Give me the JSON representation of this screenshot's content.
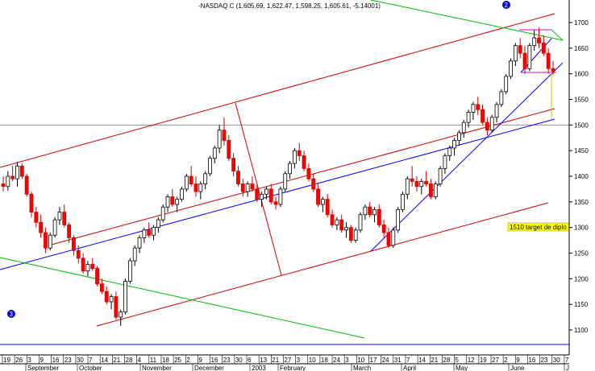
{
  "chart_data": {
    "type": "candlestick",
    "title": "-NASDAQ C (1,605.69, 1,622.47, 1,598.25, 1,605.61, -5.14001)",
    "y_ticks": [
      1100,
      1150,
      1200,
      1250,
      1300,
      1350,
      1400,
      1450,
      1500,
      1550,
      1600,
      1650,
      1700
    ],
    "ylim": [
      1070,
      1730
    ],
    "x_day_ticks": [
      "19",
      "26",
      "3",
      "9",
      "16",
      "23",
      "30",
      "7",
      "14",
      "21",
      "28",
      "4",
      "11",
      "18",
      "25",
      "2",
      "9",
      "16",
      "23",
      "30",
      "6",
      "13",
      "21",
      "27",
      "3",
      "10",
      "18",
      "24",
      "3",
      "10",
      "17",
      "24",
      "31",
      "7",
      "14",
      "21",
      "28",
      "5",
      "12",
      "19",
      "27",
      "2",
      "9",
      "16",
      "23",
      "30",
      "7"
    ],
    "x_month_labels": [
      "September",
      "October",
      "November",
      "December",
      "2003",
      "February",
      "March",
      "April",
      "May",
      "June",
      "J"
    ],
    "annotation_box": "1510 target de diplo",
    "wave_labels": [
      "2",
      "3"
    ],
    "start_date": "2002-08-19",
    "series": [
      {
        "name": "NASDAQ C",
        "ohlc": [
          [
            1385,
            1400,
            1370,
            1380
          ],
          [
            1380,
            1410,
            1372,
            1400
          ],
          [
            1400,
            1420,
            1390,
            1395
          ],
          [
            1395,
            1428,
            1380,
            1420
          ],
          [
            1420,
            1425,
            1395,
            1400
          ],
          [
            1400,
            1405,
            1360,
            1365
          ],
          [
            1365,
            1370,
            1320,
            1330
          ],
          [
            1330,
            1340,
            1300,
            1310
          ],
          [
            1310,
            1325,
            1280,
            1290
          ],
          [
            1290,
            1300,
            1250,
            1260
          ],
          [
            1260,
            1290,
            1255,
            1285
          ],
          [
            1285,
            1320,
            1280,
            1315
          ],
          [
            1315,
            1340,
            1305,
            1330
          ],
          [
            1330,
            1345,
            1300,
            1305
          ],
          [
            1305,
            1310,
            1270,
            1280
          ],
          [
            1280,
            1285,
            1245,
            1255
          ],
          [
            1255,
            1265,
            1230,
            1240
          ],
          [
            1240,
            1250,
            1210,
            1215
          ],
          [
            1215,
            1235,
            1205,
            1228
          ],
          [
            1228,
            1240,
            1215,
            1220
          ],
          [
            1220,
            1225,
            1185,
            1190
          ],
          [
            1190,
            1200,
            1170,
            1175
          ],
          [
            1175,
            1185,
            1150,
            1155
          ],
          [
            1155,
            1170,
            1140,
            1165
          ],
          [
            1165,
            1175,
            1120,
            1125
          ],
          [
            1125,
            1140,
            1108,
            1135
          ],
          [
            1135,
            1200,
            1130,
            1195
          ],
          [
            1195,
            1240,
            1190,
            1235
          ],
          [
            1235,
            1265,
            1225,
            1260
          ],
          [
            1260,
            1285,
            1250,
            1280
          ],
          [
            1280,
            1300,
            1270,
            1295
          ],
          [
            1295,
            1310,
            1280,
            1285
          ],
          [
            1285,
            1305,
            1275,
            1300
          ],
          [
            1300,
            1320,
            1290,
            1315
          ],
          [
            1315,
            1345,
            1310,
            1340
          ],
          [
            1340,
            1365,
            1330,
            1360
          ],
          [
            1360,
            1375,
            1340,
            1345
          ],
          [
            1345,
            1360,
            1330,
            1355
          ],
          [
            1355,
            1380,
            1350,
            1375
          ],
          [
            1375,
            1405,
            1370,
            1400
          ],
          [
            1400,
            1420,
            1380,
            1385
          ],
          [
            1385,
            1400,
            1360,
            1370
          ],
          [
            1370,
            1390,
            1355,
            1385
          ],
          [
            1385,
            1410,
            1375,
            1405
          ],
          [
            1405,
            1440,
            1400,
            1435
          ],
          [
            1435,
            1460,
            1425,
            1455
          ],
          [
            1455,
            1500,
            1445,
            1490
          ],
          [
            1490,
            1515,
            1460,
            1470
          ],
          [
            1470,
            1480,
            1430,
            1435
          ],
          [
            1435,
            1445,
            1400,
            1410
          ],
          [
            1410,
            1420,
            1380,
            1385
          ],
          [
            1385,
            1395,
            1360,
            1370
          ],
          [
            1370,
            1390,
            1360,
            1385
          ],
          [
            1385,
            1400,
            1370,
            1375
          ],
          [
            1375,
            1385,
            1350,
            1355
          ],
          [
            1355,
            1370,
            1340,
            1365
          ],
          [
            1365,
            1380,
            1355,
            1375
          ],
          [
            1375,
            1385,
            1345,
            1350
          ],
          [
            1350,
            1360,
            1335,
            1345
          ],
          [
            1345,
            1380,
            1340,
            1375
          ],
          [
            1375,
            1410,
            1370,
            1405
          ],
          [
            1405,
            1430,
            1395,
            1425
          ],
          [
            1425,
            1455,
            1415,
            1450
          ],
          [
            1450,
            1465,
            1430,
            1440
          ],
          [
            1440,
            1450,
            1410,
            1415
          ],
          [
            1415,
            1425,
            1390,
            1395
          ],
          [
            1395,
            1405,
            1370,
            1375
          ],
          [
            1375,
            1385,
            1340,
            1345
          ],
          [
            1345,
            1360,
            1330,
            1355
          ],
          [
            1355,
            1365,
            1320,
            1325
          ],
          [
            1325,
            1335,
            1300,
            1305
          ],
          [
            1305,
            1320,
            1295,
            1315
          ],
          [
            1315,
            1325,
            1290,
            1295
          ],
          [
            1295,
            1310,
            1280,
            1300
          ],
          [
            1300,
            1305,
            1270,
            1275
          ],
          [
            1275,
            1300,
            1270,
            1295
          ],
          [
            1295,
            1330,
            1290,
            1325
          ],
          [
            1325,
            1345,
            1315,
            1340
          ],
          [
            1340,
            1350,
            1320,
            1325
          ],
          [
            1325,
            1340,
            1310,
            1335
          ],
          [
            1335,
            1345,
            1300,
            1305
          ],
          [
            1305,
            1315,
            1280,
            1290
          ],
          [
            1290,
            1300,
            1260,
            1265
          ],
          [
            1265,
            1300,
            1260,
            1295
          ],
          [
            1295,
            1340,
            1290,
            1335
          ],
          [
            1335,
            1370,
            1330,
            1365
          ],
          [
            1365,
            1400,
            1355,
            1395
          ],
          [
            1395,
            1420,
            1380,
            1390
          ],
          [
            1390,
            1400,
            1370,
            1380
          ],
          [
            1380,
            1395,
            1365,
            1390
          ],
          [
            1390,
            1410,
            1380,
            1385
          ],
          [
            1385,
            1395,
            1355,
            1360
          ],
          [
            1360,
            1390,
            1355,
            1385
          ],
          [
            1385,
            1420,
            1380,
            1415
          ],
          [
            1415,
            1445,
            1405,
            1440
          ],
          [
            1440,
            1460,
            1430,
            1455
          ],
          [
            1455,
            1475,
            1440,
            1470
          ],
          [
            1470,
            1490,
            1460,
            1485
          ],
          [
            1485,
            1510,
            1475,
            1505
          ],
          [
            1505,
            1530,
            1495,
            1525
          ],
          [
            1525,
            1545,
            1510,
            1540
          ],
          [
            1540,
            1555,
            1520,
            1530
          ],
          [
            1530,
            1540,
            1500,
            1505
          ],
          [
            1505,
            1515,
            1480,
            1490
          ],
          [
            1490,
            1520,
            1485,
            1515
          ],
          [
            1515,
            1545,
            1505,
            1540
          ],
          [
            1540,
            1570,
            1535,
            1565
          ],
          [
            1565,
            1600,
            1560,
            1595
          ],
          [
            1595,
            1630,
            1590,
            1625
          ],
          [
            1625,
            1660,
            1615,
            1655
          ],
          [
            1655,
            1670,
            1630,
            1640
          ],
          [
            1640,
            1655,
            1600,
            1610
          ],
          [
            1610,
            1660,
            1605,
            1655
          ],
          [
            1655,
            1685,
            1645,
            1670
          ],
          [
            1670,
            1690,
            1650,
            1660
          ],
          [
            1660,
            1675,
            1635,
            1640
          ],
          [
            1640,
            1650,
            1600,
            1610
          ],
          [
            1610,
            1625,
            1598,
            1605
          ]
        ]
      }
    ],
    "grid": false
  }
}
